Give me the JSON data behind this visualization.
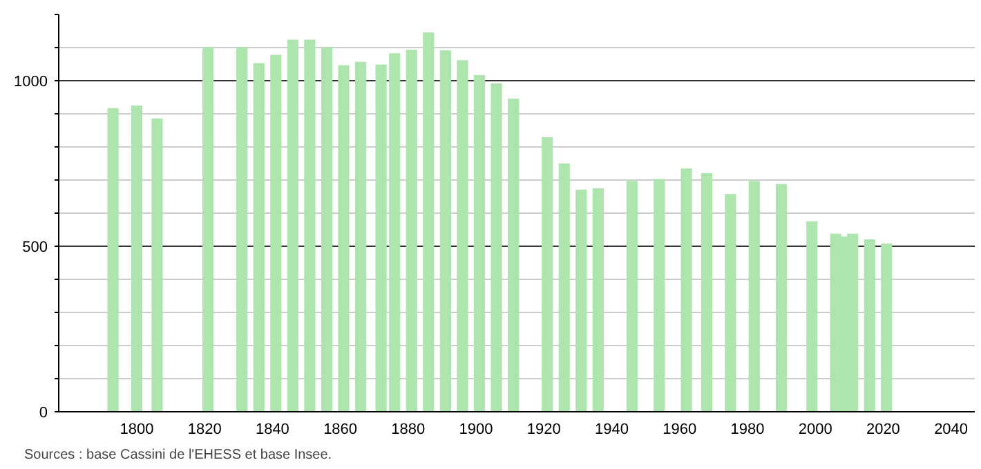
{
  "chart_data": {
    "type": "bar",
    "x": [
      1793,
      1800,
      1806,
      1821,
      1831,
      1836,
      1841,
      1846,
      1851,
      1856,
      1861,
      1866,
      1872,
      1876,
      1881,
      1886,
      1891,
      1896,
      1901,
      1906,
      1911,
      1921,
      1926,
      1931,
      1936,
      1946,
      1954,
      1962,
      1968,
      1975,
      1982,
      1990,
      1999,
      2006,
      2008,
      2011,
      2016,
      2021
    ],
    "values": [
      917,
      925,
      886,
      1101,
      1101,
      1053,
      1078,
      1124,
      1124,
      1101,
      1047,
      1057,
      1049,
      1083,
      1094,
      1146,
      1092,
      1062,
      1017,
      992,
      946,
      829,
      750,
      671,
      675,
      697,
      703,
      735,
      721,
      658,
      697,
      688,
      575,
      538,
      529,
      538,
      521,
      508
    ],
    "color": "#aee4ae",
    "xlim": [
      1777,
      2047
    ],
    "xticks": [
      1800,
      1820,
      1840,
      1860,
      1880,
      1900,
      1920,
      1940,
      1960,
      1980,
      2000,
      2020,
      2040
    ],
    "ylim": [
      0,
      1200
    ],
    "yticks": [
      0,
      {
        "value": 100,
        "label": null
      },
      {
        "value": 200,
        "label": null
      },
      {
        "value": 300,
        "label": null
      },
      {
        "value": 400,
        "label": null
      },
      500,
      {
        "value": 600,
        "label": null
      },
      {
        "value": 700,
        "label": null
      },
      {
        "value": 800,
        "label": null
      },
      {
        "value": 900,
        "label": null
      },
      1000,
      {
        "value": 1100,
        "label": null
      },
      {
        "value": 1200,
        "label": null
      }
    ],
    "grid": "y",
    "annotations": [
      "Sources : base Cassini de l'EHESS et base Insee."
    ]
  }
}
